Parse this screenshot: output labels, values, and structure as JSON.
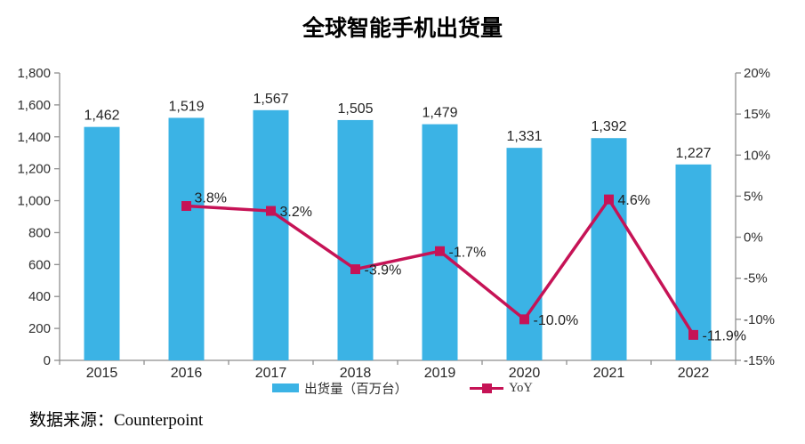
{
  "page": {
    "title": "全球智能手机出货量",
    "source_note": "数据来源：Counterpoint"
  },
  "colors": {
    "bar": "#3BB3E5",
    "line": "#C61356",
    "axis": "#8E8E8E",
    "text": "#303030"
  },
  "legend": {
    "bar_label": "出货量（百万台）",
    "line_label": "YoY"
  },
  "chart_data": {
    "type": "combo",
    "title": "全球智能手机出货量",
    "categories": [
      "2015",
      "2016",
      "2017",
      "2018",
      "2019",
      "2020",
      "2021",
      "2022"
    ],
    "series": [
      {
        "name": "出货量（百万台）",
        "type": "bar",
        "axis": "left",
        "color": "#3BB3E5",
        "values": [
          1462,
          1519,
          1567,
          1505,
          1479,
          1331,
          1392,
          1227
        ],
        "labels": [
          "1,462",
          "1,519",
          "1,567",
          "1,505",
          "1,479",
          "1,331",
          "1,392",
          "1,227"
        ]
      },
      {
        "name": "YoY",
        "type": "line",
        "axis": "right",
        "color": "#C61356",
        "values": [
          null,
          3.8,
          3.2,
          -3.9,
          -1.7,
          -10.0,
          4.6,
          -11.9
        ],
        "labels": [
          null,
          "3.8%",
          "3.2%",
          "-3.9%",
          "-1.7%",
          "-10.0%",
          "4.6%",
          "-11.9%"
        ]
      }
    ],
    "left_axis": {
      "min": 0,
      "max": 1800,
      "step": 200,
      "ticks_top_to_bottom": [
        "1,800",
        "1,600",
        "1,400",
        "1,200",
        "1,000",
        "800",
        "600",
        "400",
        "200",
        "0"
      ]
    },
    "right_axis": {
      "min": -15,
      "max": 20,
      "step": 5,
      "ticks_top_to_bottom": [
        "20%",
        "15%",
        "10%",
        "5%",
        "0%",
        "-5%",
        "-10%",
        "-15%"
      ]
    },
    "legend_position": "bottom",
    "grid": false
  }
}
